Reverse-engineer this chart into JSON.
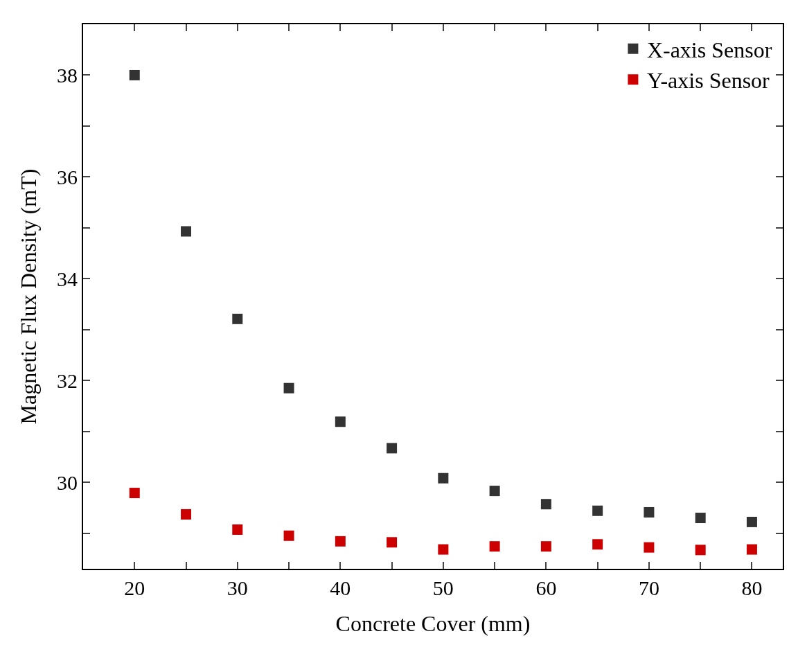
{
  "chart_data": {
    "type": "scatter",
    "xlabel": "Concrete Cover (mm)",
    "ylabel": "Magnetic Flux Density (mT)",
    "x": [
      20,
      25,
      30,
      35,
      40,
      45,
      50,
      55,
      60,
      65,
      70,
      75,
      80
    ],
    "series": [
      {
        "name": "X-axis Sensor",
        "color": "#333333",
        "values": [
          38.0,
          34.93,
          33.21,
          31.85,
          31.19,
          30.67,
          30.08,
          29.83,
          29.57,
          29.44,
          29.41,
          29.3,
          29.22
        ]
      },
      {
        "name": "Y-axis Sensor",
        "color": "#cc0000",
        "values": [
          29.79,
          29.37,
          29.07,
          28.95,
          28.84,
          28.82,
          28.68,
          28.74,
          28.74,
          28.78,
          28.72,
          28.67,
          28.68
        ]
      }
    ],
    "xlim": [
      15,
      83
    ],
    "ylim": [
      28.3,
      39
    ],
    "xticks": [
      20,
      {
        "value": 25,
        "label": null
      },
      30,
      {
        "value": 35,
        "label": null
      },
      40,
      {
        "value": 45,
        "label": null
      },
      50,
      {
        "value": 55,
        "label": null
      },
      60,
      {
        "value": 65,
        "label": null
      },
      70,
      {
        "value": 75,
        "label": null
      },
      80
    ],
    "yticks": [
      {
        "value": 29,
        "label": null
      },
      30,
      {
        "value": 31,
        "label": null
      },
      32,
      {
        "value": 33,
        "label": null
      },
      34,
      {
        "value": 35,
        "label": null
      },
      36,
      {
        "value": 37,
        "label": null
      },
      38
    ],
    "marker": "square",
    "legend": "top right"
  }
}
